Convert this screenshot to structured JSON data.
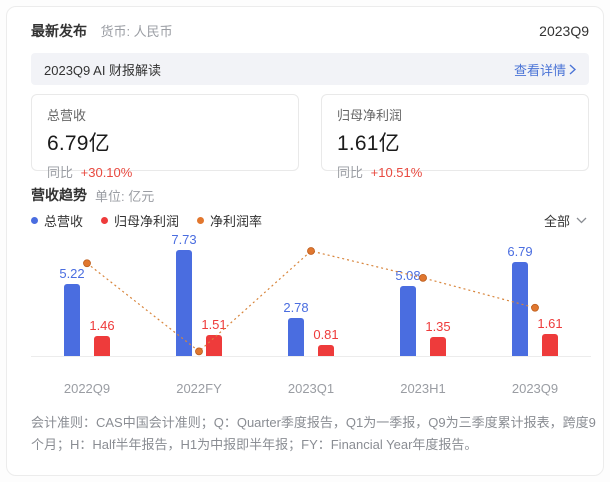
{
  "header": {
    "title": "最新发布",
    "currency_label": "货币: 人民币",
    "period": "2023Q9"
  },
  "ai_banner": {
    "title": "2023Q9 AI 财报解读",
    "link_label": "查看详情"
  },
  "stat_cards": [
    {
      "label": "总营收",
      "value": "6.79亿",
      "yoy_label": "同比",
      "yoy_value": "+30.10%"
    },
    {
      "label": "归母净利润",
      "value": "1.61亿",
      "yoy_label": "同比",
      "yoy_value": "+10.51%"
    }
  ],
  "trend_section": {
    "title": "营收趋势",
    "unit_label": "单位: 亿元",
    "filter_label": "全部",
    "legend": [
      {
        "label": "总营收",
        "color": "#4a6de0"
      },
      {
        "label": "归母净利润",
        "color": "#ee3b3b"
      },
      {
        "label": "净利润率",
        "color": "#e2772e"
      }
    ]
  },
  "chart_data": {
    "type": "bar",
    "title": "营收趋势",
    "unit": "亿元",
    "categories": [
      "2022Q9",
      "2022FY",
      "2023Q1",
      "2023H1",
      "2023Q9"
    ],
    "series": [
      {
        "name": "总营收",
        "type": "bar",
        "color": "#4a6de0",
        "values": [
          5.22,
          7.73,
          2.78,
          5.08,
          6.79
        ]
      },
      {
        "name": "归母净利润",
        "type": "bar",
        "color": "#ee3b3b",
        "values": [
          1.46,
          1.51,
          0.81,
          1.35,
          1.61
        ]
      },
      {
        "name": "净利润率",
        "type": "line",
        "color": "#e0772f",
        "line_color": "#d8853c",
        "values_pct_estimated": [
          27.97,
          19.54,
          29.14,
          26.57,
          23.71
        ]
      }
    ],
    "bar_axis_max": 8.35,
    "line_axis": {
      "min": 19,
      "max": 30
    },
    "grid": false,
    "legend_position": "top-left"
  },
  "footnote": "会计准则：CAS中国会计准则；Q：Quarter季度报告，Q1为一季报，Q9为三季度累计报表，跨度9个月；H：Half半年报告，H1为中报即半年报；FY：Financial Year年度报告。"
}
